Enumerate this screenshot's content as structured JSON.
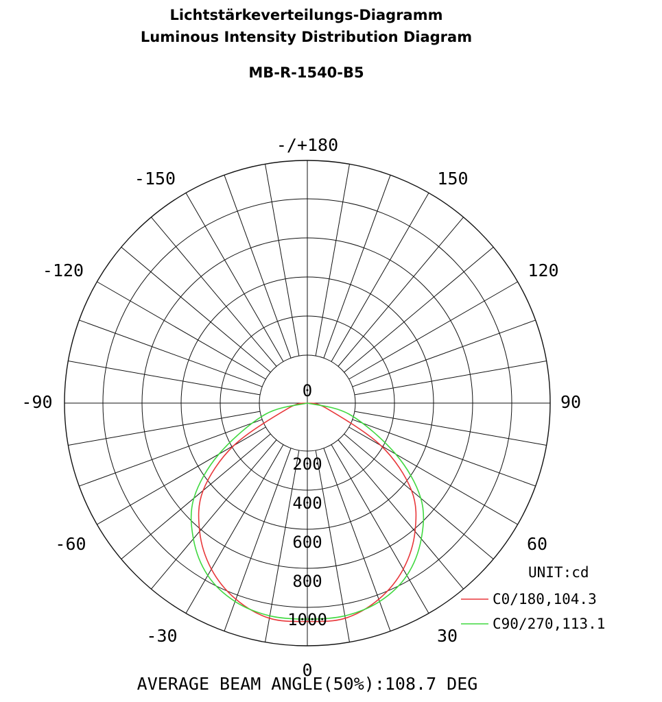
{
  "chart_data": {
    "type": "polar",
    "title": "Lichtstärkeverteilungs-Diagramm",
    "subtitle": "Luminous Intensity Distribution Diagram",
    "model": "MB-R-1540-B5",
    "unit_label": "UNIT:cd",
    "footer": "AVERAGE BEAM ANGLE(50%):108.7 DEG",
    "angular_labels": [
      {
        "angle": 180,
        "text": "-/+180"
      },
      {
        "angle": 150,
        "text": "150"
      },
      {
        "angle": -150,
        "text": "-150"
      },
      {
        "angle": 120,
        "text": "120"
      },
      {
        "angle": -120,
        "text": "-120"
      },
      {
        "angle": 90,
        "text": "90"
      },
      {
        "angle": -90,
        "text": "-90"
      },
      {
        "angle": 60,
        "text": "60"
      },
      {
        "angle": -60,
        "text": "-60"
      },
      {
        "angle": 30,
        "text": "30"
      },
      {
        "angle": -30,
        "text": "-30"
      },
      {
        "angle": 0,
        "text": "0"
      }
    ],
    "radial_labels": [
      {
        "value": 0,
        "text": "0"
      },
      {
        "value": 200,
        "text": "200"
      },
      {
        "value": 400,
        "text": "400"
      },
      {
        "value": 600,
        "text": "600"
      },
      {
        "value": 800,
        "text": "800"
      },
      {
        "value": 1000,
        "text": "1000"
      }
    ],
    "rlim": [
      0,
      1000
    ],
    "series": [
      {
        "name": "C0/180,104.3",
        "color": "#e8373a",
        "angles": [
          -90,
          -75,
          -60,
          -50,
          -40,
          -30,
          -20,
          -10,
          0,
          10,
          20,
          30,
          40,
          50,
          60,
          75,
          90
        ],
        "values": [
          0,
          80,
          350,
          560,
          690,
          790,
          860,
          900,
          900,
          900,
          860,
          790,
          690,
          560,
          350,
          80,
          0
        ]
      },
      {
        "name": "C90/270,113.1",
        "color": "#3fd83f",
        "angles": [
          -90,
          -75,
          -60,
          -50,
          -40,
          -30,
          -20,
          -10,
          0,
          10,
          20,
          30,
          40,
          50,
          60,
          75,
          90
        ],
        "values": [
          0,
          180,
          420,
          610,
          730,
          820,
          870,
          890,
          890,
          890,
          870,
          820,
          730,
          610,
          420,
          180,
          0
        ]
      }
    ]
  }
}
